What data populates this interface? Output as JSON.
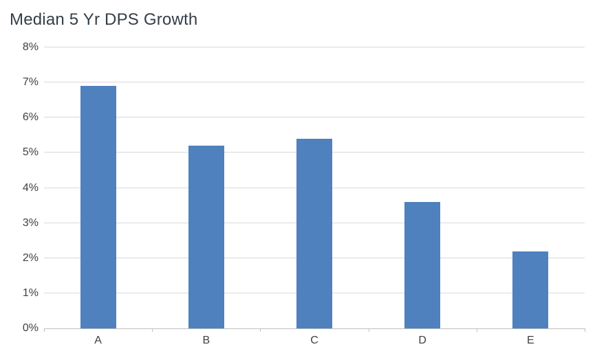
{
  "chart_data": {
    "type": "bar",
    "title": "Median 5 Yr DPS Growth",
    "categories": [
      "A",
      "B",
      "C",
      "D",
      "E"
    ],
    "values": [
      6.9,
      5.2,
      5.4,
      3.6,
      2.2
    ],
    "value_unit": "%",
    "xlabel": "",
    "ylabel": "",
    "ylim": [
      0,
      8
    ],
    "y_tick_step": 1,
    "y_tick_labels": [
      "0%",
      "1%",
      "2%",
      "3%",
      "4%",
      "5%",
      "6%",
      "7%",
      "8%"
    ],
    "grid": true,
    "legend": "none",
    "colors": {
      "bar": "#4E81BD",
      "gridline": "#D9D9D9",
      "axis_line": "#BFBFBF",
      "tick_label": "#404040",
      "title": "#333E48",
      "background": "#FFFFFF"
    }
  }
}
